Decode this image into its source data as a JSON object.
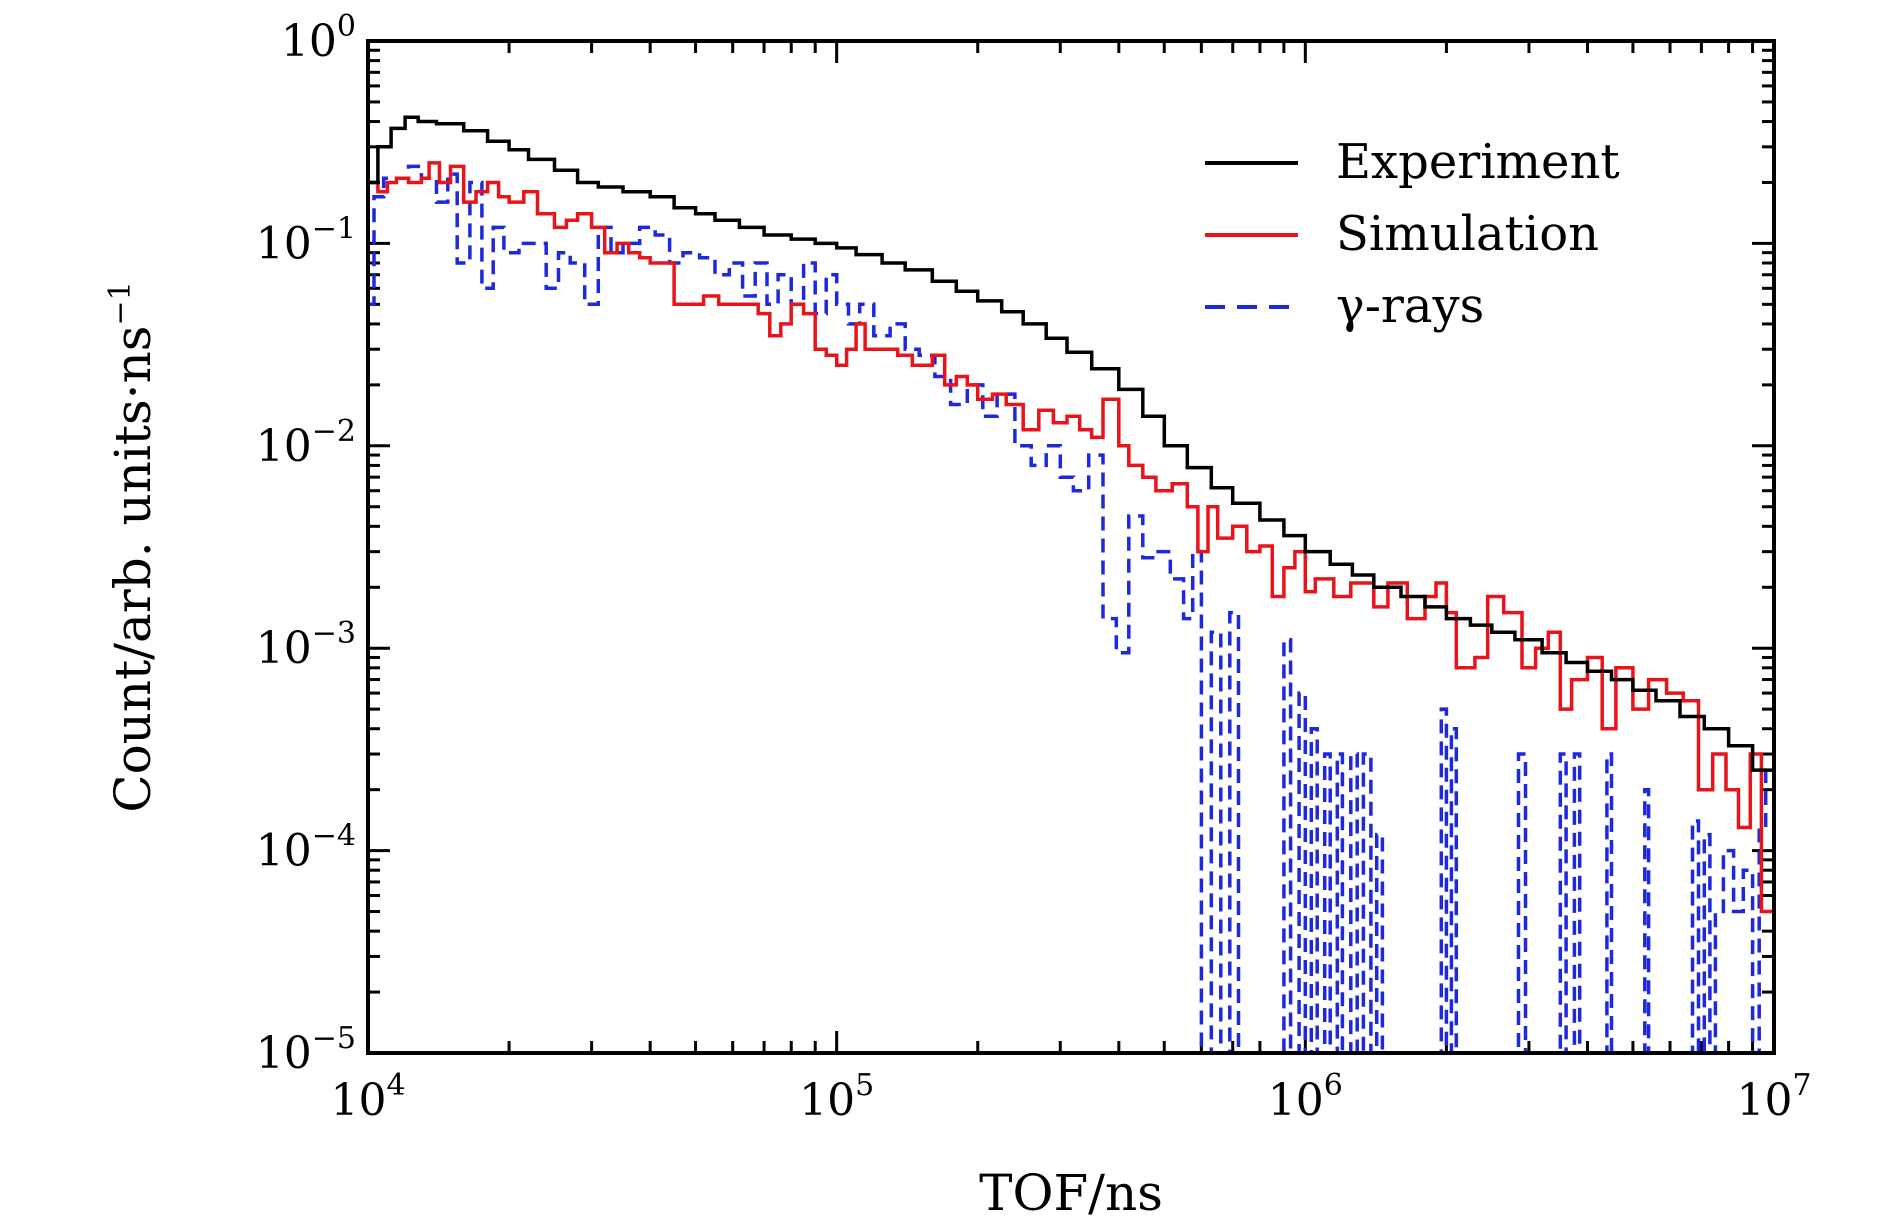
{
  "chart_data": {
    "type": "line",
    "step": true,
    "xscale": "log",
    "yscale": "log",
    "xlim": [
      10000,
      10000000
    ],
    "ylim": [
      1e-05,
      1
    ],
    "xlabel": "TOF/ns",
    "ylabel": "Count/arb. units·ns",
    "ylabel_sup": "−1",
    "x_ticks": [
      {
        "value": 10000,
        "base": "10",
        "exp": "4"
      },
      {
        "value": 100000,
        "base": "10",
        "exp": "5"
      },
      {
        "value": 1000000,
        "base": "10",
        "exp": "6"
      },
      {
        "value": 10000000,
        "base": "10",
        "exp": "7"
      }
    ],
    "y_ticks": [
      {
        "value": 1,
        "base": "10",
        "exp": "0"
      },
      {
        "value": 0.1,
        "base": "10",
        "exp": "−1"
      },
      {
        "value": 0.01,
        "base": "10",
        "exp": "−2"
      },
      {
        "value": 0.001,
        "base": "10",
        "exp": "−3"
      },
      {
        "value": 0.0001,
        "base": "10",
        "exp": "−4"
      },
      {
        "value": 1e-05,
        "base": "10",
        "exp": "−5"
      }
    ],
    "legend_position": "top-right",
    "series": [
      {
        "name": "Experiment",
        "color": "#000000",
        "dash": "solid",
        "points": [
          [
            10000,
            0.2
          ],
          [
            10500,
            0.3
          ],
          [
            11200,
            0.37
          ],
          [
            12000,
            0.42
          ],
          [
            12800,
            0.4
          ],
          [
            14000,
            0.39
          ],
          [
            16000,
            0.36
          ],
          [
            18000,
            0.32
          ],
          [
            20000,
            0.29
          ],
          [
            22000,
            0.26
          ],
          [
            25000,
            0.23
          ],
          [
            28000,
            0.2
          ],
          [
            31000,
            0.19
          ],
          [
            35000,
            0.18
          ],
          [
            40000,
            0.17
          ],
          [
            45000,
            0.15
          ],
          [
            50000,
            0.14
          ],
          [
            55000,
            0.13
          ],
          [
            62000,
            0.12
          ],
          [
            70000,
            0.11
          ],
          [
            80000,
            0.105
          ],
          [
            90000,
            0.1
          ],
          [
            100000,
            0.095
          ],
          [
            110000,
            0.088
          ],
          [
            125000,
            0.08
          ],
          [
            140000,
            0.074
          ],
          [
            160000,
            0.065
          ],
          [
            180000,
            0.058
          ],
          [
            200000,
            0.052
          ],
          [
            225000,
            0.046
          ],
          [
            250000,
            0.04
          ],
          [
            280000,
            0.034
          ],
          [
            310000,
            0.029
          ],
          [
            350000,
            0.024
          ],
          [
            400000,
            0.019
          ],
          [
            450000,
            0.014
          ],
          [
            500000,
            0.01
          ],
          [
            560000,
            0.0078
          ],
          [
            630000,
            0.0062
          ],
          [
            700000,
            0.0052
          ],
          [
            800000,
            0.0043
          ],
          [
            900000,
            0.0036
          ],
          [
            1000000,
            0.003
          ],
          [
            1130000,
            0.0026
          ],
          [
            1260000,
            0.0023
          ],
          [
            1400000,
            0.002
          ],
          [
            1600000,
            0.0018
          ],
          [
            1800000,
            0.0016
          ],
          [
            2000000,
            0.0014
          ],
          [
            2250000,
            0.0013
          ],
          [
            2500000,
            0.0012
          ],
          [
            2800000,
            0.0011
          ],
          [
            3200000,
            0.00095
          ],
          [
            3600000,
            0.00085
          ],
          [
            4000000,
            0.00077
          ],
          [
            4500000,
            0.0007
          ],
          [
            5000000,
            0.00062
          ],
          [
            5600000,
            0.00055
          ],
          [
            6300000,
            0.00046
          ],
          [
            7100000,
            0.0004
          ],
          [
            8000000,
            0.00033
          ],
          [
            9000000,
            0.00025
          ],
          [
            10000000,
            0.00015
          ]
        ]
      },
      {
        "name": "Simulation",
        "color": "#e8141a",
        "dash": "solid",
        "points": [
          [
            10000,
            0.2
          ],
          [
            10500,
            0.18
          ],
          [
            11000,
            0.2
          ],
          [
            11500,
            0.21
          ],
          [
            12200,
            0.2
          ],
          [
            13000,
            0.21
          ],
          [
            13500,
            0.25
          ],
          [
            14200,
            0.2
          ],
          [
            15000,
            0.24
          ],
          [
            16000,
            0.16
          ],
          [
            17000,
            0.18
          ],
          [
            18000,
            0.2
          ],
          [
            19000,
            0.17
          ],
          [
            20000,
            0.16
          ],
          [
            21500,
            0.18
          ],
          [
            23000,
            0.14
          ],
          [
            25000,
            0.12
          ],
          [
            26500,
            0.13
          ],
          [
            28000,
            0.14
          ],
          [
            30000,
            0.12
          ],
          [
            32000,
            0.09
          ],
          [
            34000,
            0.1
          ],
          [
            36000,
            0.09
          ],
          [
            38000,
            0.085
          ],
          [
            40000,
            0.08
          ],
          [
            42000,
            0.08
          ],
          [
            45000,
            0.05
          ],
          [
            48000,
            0.05
          ],
          [
            52000,
            0.055
          ],
          [
            56000,
            0.05
          ],
          [
            60000,
            0.05
          ],
          [
            64000,
            0.05
          ],
          [
            68000,
            0.045
          ],
          [
            72000,
            0.035
          ],
          [
            76000,
            0.04
          ],
          [
            80000,
            0.05
          ],
          [
            85000,
            0.045
          ],
          [
            90000,
            0.03
          ],
          [
            95000,
            0.028
          ],
          [
            100000,
            0.025
          ],
          [
            105000,
            0.03
          ],
          [
            110000,
            0.04
          ],
          [
            115000,
            0.03
          ],
          [
            125000,
            0.03
          ],
          [
            135000,
            0.028
          ],
          [
            145000,
            0.025
          ],
          [
            160000,
            0.028
          ],
          [
            170000,
            0.02
          ],
          [
            180000,
            0.022
          ],
          [
            190000,
            0.02
          ],
          [
            200000,
            0.017
          ],
          [
            215000,
            0.018
          ],
          [
            230000,
            0.016
          ],
          [
            250000,
            0.012
          ],
          [
            270000,
            0.015
          ],
          [
            290000,
            0.013
          ],
          [
            310000,
            0.014
          ],
          [
            330000,
            0.012
          ],
          [
            350000,
            0.011
          ],
          [
            370000,
            0.017
          ],
          [
            400000,
            0.01
          ],
          [
            420000,
            0.008
          ],
          [
            450000,
            0.007
          ],
          [
            480000,
            0.006
          ],
          [
            520000,
            0.0065
          ],
          [
            560000,
            0.005
          ],
          [
            590000,
            0.003
          ],
          [
            620000,
            0.005
          ],
          [
            650000,
            0.0035
          ],
          [
            700000,
            0.004
          ],
          [
            750000,
            0.003
          ],
          [
            800000,
            0.0032
          ],
          [
            850000,
            0.0018
          ],
          [
            900000,
            0.0025
          ],
          [
            950000,
            0.003
          ],
          [
            1000000,
            0.0019
          ],
          [
            1050000,
            0.0022
          ],
          [
            1150000,
            0.0018
          ],
          [
            1250000,
            0.0021
          ],
          [
            1400000,
            0.0016
          ],
          [
            1500000,
            0.0021
          ],
          [
            1650000,
            0.0014
          ],
          [
            1800000,
            0.0018
          ],
          [
            1900000,
            0.0021
          ],
          [
            2000000,
            0.0015
          ],
          [
            2100000,
            0.0008
          ],
          [
            2300000,
            0.0009
          ],
          [
            2450000,
            0.0018
          ],
          [
            2650000,
            0.0015
          ],
          [
            2900000,
            0.0008
          ],
          [
            3100000,
            0.001
          ],
          [
            3300000,
            0.0012
          ],
          [
            3500000,
            0.0005
          ],
          [
            3700000,
            0.0007
          ],
          [
            4000000,
            0.0009
          ],
          [
            4300000,
            0.0004
          ],
          [
            4600000,
            0.0008
          ],
          [
            5000000,
            0.0005
          ],
          [
            5400000,
            0.0007
          ],
          [
            5900000,
            0.0006
          ],
          [
            6400000,
            0.00055
          ],
          [
            6900000,
            0.0002
          ],
          [
            7400000,
            0.0003
          ],
          [
            7900000,
            0.0002
          ],
          [
            8400000,
            0.00013
          ],
          [
            8900000,
            0.0003
          ],
          [
            9400000,
            5e-05
          ],
          [
            10000000,
            1e-05
          ]
        ]
      },
      {
        "name": "γ-rays",
        "color": "#1e28dc",
        "dash": "dashed",
        "points": [
          [
            10000,
            0.05
          ],
          [
            10300,
            0.17
          ],
          [
            10800,
            0.21
          ],
          [
            11500,
            0.21
          ],
          [
            12200,
            0.24
          ],
          [
            13000,
            0.21
          ],
          [
            14000,
            0.16
          ],
          [
            14800,
            0.22
          ],
          [
            15500,
            0.08
          ],
          [
            16500,
            0.2
          ],
          [
            17500,
            0.06
          ],
          [
            18500,
            0.12
          ],
          [
            19500,
            0.09
          ],
          [
            21000,
            0.1
          ],
          [
            22500,
            0.1
          ],
          [
            24000,
            0.06
          ],
          [
            25500,
            0.09
          ],
          [
            27000,
            0.08
          ],
          [
            29000,
            0.05
          ],
          [
            31000,
            0.12
          ],
          [
            33000,
            0.09
          ],
          [
            35000,
            0.1
          ],
          [
            38000,
            0.12
          ],
          [
            41000,
            0.11
          ],
          [
            44000,
            0.08
          ],
          [
            47000,
            0.09
          ],
          [
            51000,
            0.085
          ],
          [
            55000,
            0.07
          ],
          [
            59000,
            0.08
          ],
          [
            63000,
            0.055
          ],
          [
            67000,
            0.08
          ],
          [
            71000,
            0.05
          ],
          [
            75000,
            0.07
          ],
          [
            80000,
            0.05
          ],
          [
            85000,
            0.08
          ],
          [
            90000,
            0.045
          ],
          [
            95000,
            0.07
          ],
          [
            100000,
            0.05
          ],
          [
            106000,
            0.04
          ],
          [
            112000,
            0.05
          ],
          [
            120000,
            0.035
          ],
          [
            130000,
            0.04
          ],
          [
            140000,
            0.03
          ],
          [
            150000,
            0.028
          ],
          [
            162000,
            0.022
          ],
          [
            175000,
            0.016
          ],
          [
            190000,
            0.02
          ],
          [
            205000,
            0.014
          ],
          [
            220000,
            0.018
          ],
          [
            240000,
            0.01
          ],
          [
            260000,
            0.008
          ],
          [
            280000,
            0.01
          ],
          [
            300000,
            0.007
          ],
          [
            320000,
            0.006
          ],
          [
            345000,
            0.009
          ],
          [
            370000,
            0.0014
          ],
          [
            395000,
            0.00095
          ],
          [
            420000,
            0.0045
          ],
          [
            450000,
            0.0028
          ],
          [
            480000,
            0.003
          ],
          [
            515000,
            0.0022
          ],
          [
            550000,
            0.0014
          ],
          [
            575000,
            0.003
          ],
          [
            600000,
            1e-05
          ],
          [
            630000,
            0.0012
          ],
          [
            660000,
            1e-05
          ],
          [
            690000,
            0.0015
          ],
          [
            720000,
            1e-05
          ],
          [
            860000,
            1e-05
          ],
          [
            900000,
            0.0011
          ],
          [
            930000,
            1e-05
          ],
          [
            970000,
            0.0006
          ],
          [
            1000000,
            1e-05
          ],
          [
            1030000,
            0.0004
          ],
          [
            1060000,
            1e-05
          ],
          [
            1100000,
            0.0003
          ],
          [
            1130000,
            1e-05
          ],
          [
            1170000,
            0.0003
          ],
          [
            1200000,
            1e-05
          ],
          [
            1250000,
            0.0003
          ],
          [
            1290000,
            1e-05
          ],
          [
            1330000,
            0.0003
          ],
          [
            1380000,
            1e-05
          ],
          [
            1420000,
            0.00012
          ],
          [
            1460000,
            1e-05
          ],
          [
            1900000,
            1e-05
          ],
          [
            1950000,
            0.0005
          ],
          [
            2000000,
            1e-05
          ],
          [
            2050000,
            0.0004
          ],
          [
            2100000,
            1e-05
          ],
          [
            2800000,
            1e-05
          ],
          [
            2850000,
            0.0003
          ],
          [
            2950000,
            1e-05
          ],
          [
            3450000,
            1e-05
          ],
          [
            3500000,
            0.0003
          ],
          [
            3600000,
            1e-05
          ],
          [
            3750000,
            0.0003
          ],
          [
            3850000,
            1e-05
          ],
          [
            4300000,
            1e-05
          ],
          [
            4400000,
            0.0003
          ],
          [
            4500000,
            1e-05
          ],
          [
            5200000,
            1e-05
          ],
          [
            5300000,
            0.0002
          ],
          [
            5400000,
            1e-05
          ],
          [
            6600000,
            1e-05
          ],
          [
            6700000,
            0.00014
          ],
          [
            6900000,
            1e-05
          ],
          [
            7100000,
            0.00012
          ],
          [
            7300000,
            1e-05
          ],
          [
            7500000,
            5e-05
          ],
          [
            7800000,
            0.0001
          ],
          [
            8200000,
            5e-05
          ],
          [
            8600000,
            8e-05
          ],
          [
            9000000,
            1e-05
          ],
          [
            9300000,
            0.00013
          ],
          [
            9600000,
            0.00025
          ],
          [
            10000000,
            0.00025
          ]
        ]
      }
    ]
  }
}
